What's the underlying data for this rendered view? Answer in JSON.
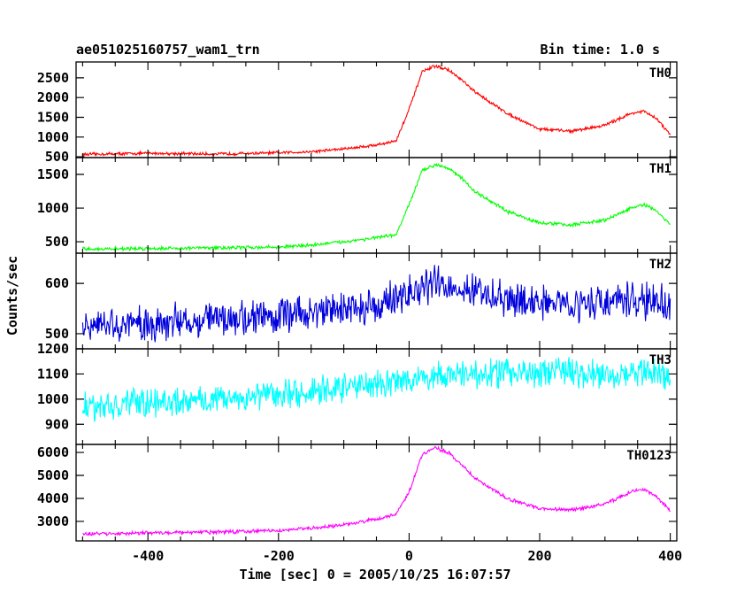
{
  "header": {
    "title": "ae051025160757_wam1_trn",
    "bin_time": "Bin time: 1.0 s"
  },
  "chart_data": {
    "type": "line",
    "xlabel": "Time [sec] 0 = 2005/10/25 16:07:57",
    "ylabel": "Counts/sec",
    "xlim": [
      -510,
      410
    ],
    "xticks": [
      -400,
      -200,
      0,
      200,
      400
    ],
    "panels": [
      {
        "name": "TH0",
        "color": "#ff0000",
        "ylim": [
          480,
          2900
        ],
        "yticks": [
          500,
          1000,
          1500,
          2000,
          2500
        ],
        "noise": 30,
        "x": [
          -500,
          -400,
          -300,
          -200,
          -150,
          -100,
          -50,
          -20,
          0,
          20,
          40,
          60,
          80,
          100,
          150,
          200,
          250,
          300,
          340,
          360,
          380,
          400
        ],
        "y": [
          560,
          590,
          570,
          600,
          630,
          700,
          800,
          900,
          1700,
          2650,
          2800,
          2700,
          2450,
          2150,
          1600,
          1200,
          1150,
          1300,
          1600,
          1650,
          1450,
          1050
        ]
      },
      {
        "name": "TH1",
        "color": "#00ff00",
        "ylim": [
          330,
          1750
        ],
        "yticks": [
          500,
          1000,
          1500
        ],
        "noise": 20,
        "x": [
          -500,
          -400,
          -300,
          -200,
          -150,
          -100,
          -50,
          -20,
          0,
          20,
          40,
          60,
          80,
          100,
          150,
          200,
          250,
          300,
          340,
          360,
          380,
          400
        ],
        "y": [
          390,
          400,
          410,
          420,
          450,
          500,
          560,
          600,
          1050,
          1550,
          1650,
          1600,
          1450,
          1250,
          950,
          780,
          750,
          820,
          1000,
          1050,
          950,
          750
        ]
      },
      {
        "name": "TH2",
        "color": "#0000dd",
        "ylim": [
          470,
          660
        ],
        "yticks": [
          500,
          600
        ],
        "noise": 28,
        "x": [
          -500,
          -400,
          -300,
          -200,
          -100,
          -50,
          0,
          40,
          80,
          150,
          250,
          350,
          400
        ],
        "y": [
          510,
          520,
          530,
          535,
          550,
          555,
          580,
          600,
          590,
          565,
          560,
          565,
          560
        ]
      },
      {
        "name": "TH3",
        "color": "#00ffff",
        "ylim": [
          820,
          1200
        ],
        "yticks": [
          900,
          1000,
          1100,
          1200
        ],
        "noise": 45,
        "x": [
          -500,
          -400,
          -300,
          -200,
          -100,
          0,
          100,
          200,
          300,
          400
        ],
        "y": [
          965,
          985,
          1000,
          1020,
          1045,
          1080,
          1100,
          1110,
          1105,
          1100
        ]
      },
      {
        "name": "TH0123",
        "color": "#ff00ff",
        "ylim": [
          2150,
          6350
        ],
        "yticks": [
          3000,
          4000,
          5000,
          6000
        ],
        "noise": 60,
        "x": [
          -500,
          -400,
          -300,
          -200,
          -150,
          -100,
          -50,
          -20,
          0,
          20,
          40,
          60,
          80,
          100,
          150,
          200,
          250,
          300,
          340,
          360,
          380,
          400
        ],
        "y": [
          2450,
          2500,
          2530,
          2600,
          2700,
          2850,
          3100,
          3300,
          4300,
          5900,
          6200,
          6000,
          5500,
          4900,
          4000,
          3550,
          3500,
          3750,
          4300,
          4400,
          4050,
          3450
        ]
      }
    ]
  }
}
